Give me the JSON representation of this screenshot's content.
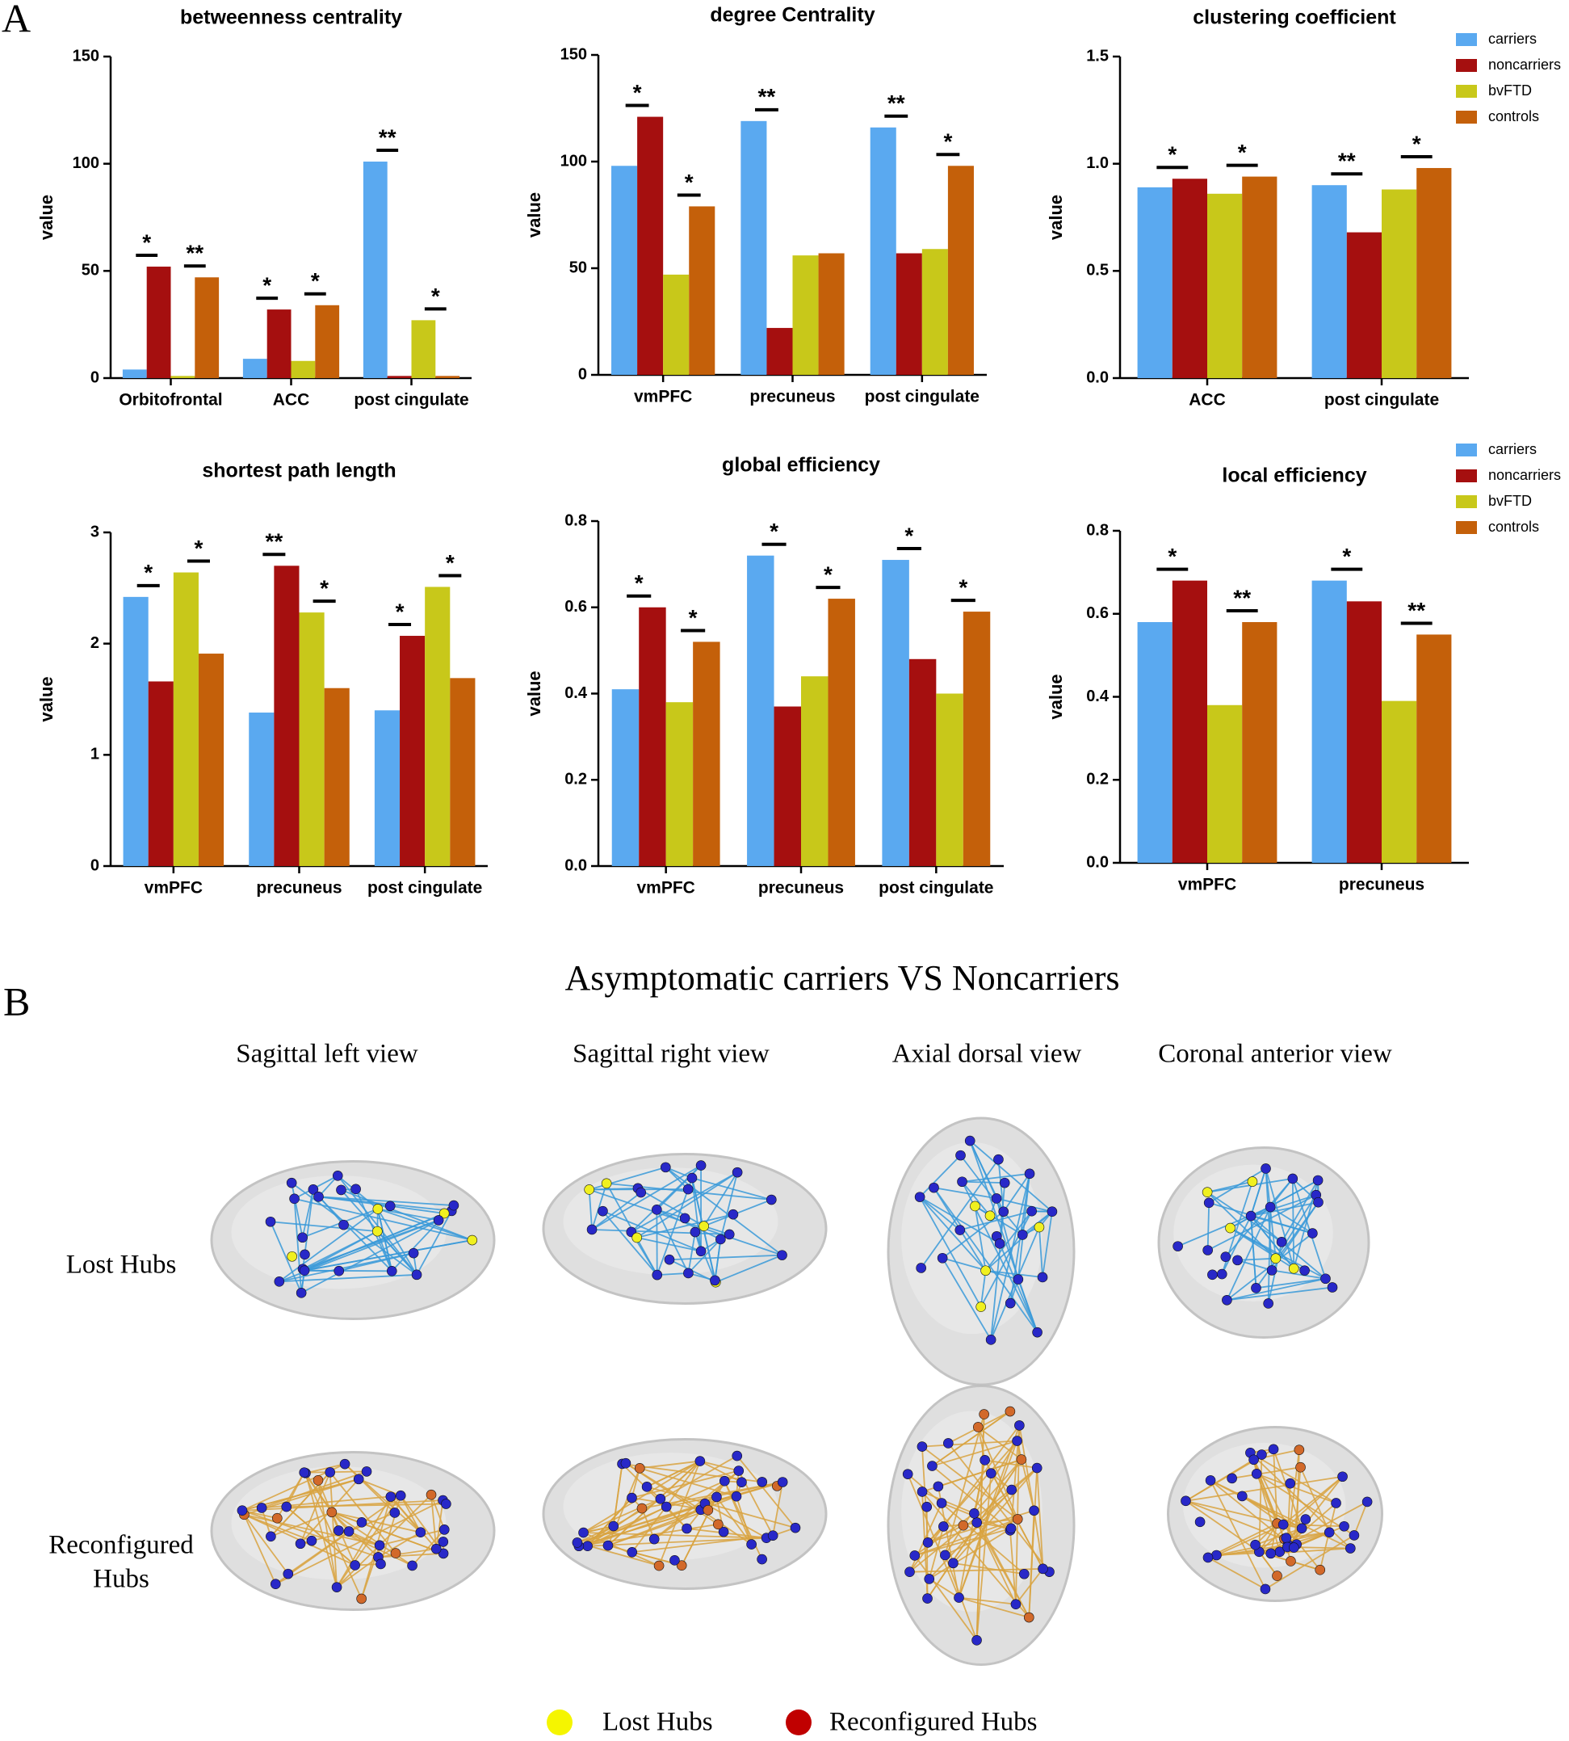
{
  "panel_labels": [
    "A",
    "B"
  ],
  "chart_data": [
    {
      "type": "bar",
      "title": "betweenness centrality",
      "y_label": "value",
      "categories": [
        "Orbitofrontal",
        "ACC",
        "post cingulate"
      ],
      "ylim": [
        0,
        150
      ],
      "yticks": [
        0,
        50,
        100,
        150
      ],
      "legend": false,
      "series": [
        {
          "name": "carriers",
          "color": "#5aa9f0",
          "values": [
            4,
            9,
            101
          ],
          "significance": [
            null,
            null,
            "**"
          ]
        },
        {
          "name": "noncarriers",
          "color": "#a50f0f",
          "values": [
            52,
            32,
            1
          ],
          "significance": [
            "*",
            "*",
            null
          ]
        },
        {
          "name": "bvFTD",
          "color": "#c8c81a",
          "values": [
            1,
            8,
            27
          ],
          "significance": [
            null,
            null,
            "*"
          ]
        },
        {
          "name": "controls",
          "color": "#c4600a",
          "values": [
            47,
            34,
            1
          ],
          "significance": [
            "**",
            "*",
            null
          ]
        }
      ]
    },
    {
      "type": "bar",
      "title": "degree Centrality",
      "y_label": "value",
      "categories": [
        "vmPFC",
        "precuneus",
        "post cingulate"
      ],
      "ylim": [
        0,
        150
      ],
      "yticks": [
        0,
        50,
        100,
        150
      ],
      "legend": false,
      "series": [
        {
          "name": "carriers",
          "color": "#5aa9f0",
          "values": [
            98,
            119,
            116
          ],
          "significance": [
            null,
            "**",
            "**"
          ]
        },
        {
          "name": "noncarriers",
          "color": "#a50f0f",
          "values": [
            121,
            22,
            57
          ],
          "significance": [
            "*",
            null,
            null
          ]
        },
        {
          "name": "bvFTD",
          "color": "#c8c81a",
          "values": [
            47,
            56,
            59
          ],
          "significance": [
            null,
            null,
            null
          ]
        },
        {
          "name": "controls",
          "color": "#c4600a",
          "values": [
            79,
            57,
            98
          ],
          "significance": [
            "*",
            null,
            "*"
          ]
        }
      ]
    },
    {
      "type": "bar",
      "title": "clustering coefficient",
      "y_label": "value",
      "categories": [
        "ACC",
        "post cingulate"
      ],
      "ylim": [
        0,
        1.5
      ],
      "yticks": [
        {
          "value": 0,
          "label": "0.0"
        },
        0.5,
        {
          "value": 1,
          "label": "1.0"
        },
        1.5
      ],
      "legend": true,
      "series": [
        {
          "name": "carriers",
          "color": "#5aa9f0",
          "values": [
            0.89,
            0.9
          ],
          "significance": [
            null,
            "**"
          ]
        },
        {
          "name": "noncarriers",
          "color": "#a50f0f",
          "values": [
            0.93,
            0.68
          ],
          "significance": [
            "*",
            null
          ]
        },
        {
          "name": "bvFTD",
          "color": "#c8c81a",
          "values": [
            0.86,
            0.88
          ],
          "significance": [
            null,
            null
          ]
        },
        {
          "name": "controls",
          "color": "#c4600a",
          "values": [
            0.94,
            0.98
          ],
          "significance": [
            "*",
            "*"
          ]
        }
      ]
    },
    {
      "type": "bar",
      "title": "shortest path length",
      "y_label": "value",
      "categories": [
        "vmPFC",
        "precuneus",
        "post cingulate"
      ],
      "ylim": [
        0,
        3
      ],
      "yticks": [
        0,
        1,
        2,
        3
      ],
      "legend": false,
      "series": [
        {
          "name": "carriers",
          "color": "#5aa9f0",
          "values": [
            2.42,
            1.38,
            1.4
          ],
          "significance": [
            "*",
            null,
            null
          ]
        },
        {
          "name": "noncarriers",
          "color": "#a50f0f",
          "values": [
            1.66,
            2.7,
            2.07
          ],
          "significance": [
            null,
            "**",
            "*"
          ]
        },
        {
          "name": "bvFTD",
          "color": "#c8c81a",
          "values": [
            2.64,
            2.28,
            2.51
          ],
          "significance": [
            "*",
            "*",
            "*"
          ]
        },
        {
          "name": "controls",
          "color": "#c4600a",
          "values": [
            1.91,
            1.6,
            1.69
          ],
          "significance": [
            null,
            null,
            null
          ]
        }
      ]
    },
    {
      "type": "bar",
      "title": "global efficiency",
      "y_label": "value",
      "categories": [
        "vmPFC",
        "precuneus",
        "post cingulate"
      ],
      "ylim": [
        0,
        0.8
      ],
      "yticks": [
        {
          "value": 0,
          "label": "0.0"
        },
        0.2,
        0.4,
        0.6,
        0.8
      ],
      "legend": false,
      "series": [
        {
          "name": "carriers",
          "color": "#5aa9f0",
          "values": [
            0.41,
            0.72,
            0.71
          ],
          "significance": [
            null,
            "*",
            "*"
          ]
        },
        {
          "name": "noncarriers",
          "color": "#a50f0f",
          "values": [
            0.6,
            0.37,
            0.48
          ],
          "significance": [
            "*",
            null,
            null
          ]
        },
        {
          "name": "bvFTD",
          "color": "#c8c81a",
          "values": [
            0.38,
            0.44,
            0.4
          ],
          "significance": [
            null,
            null,
            null
          ]
        },
        {
          "name": "controls",
          "color": "#c4600a",
          "values": [
            0.52,
            0.62,
            0.59
          ],
          "significance": [
            "*",
            "*",
            "*"
          ]
        }
      ]
    },
    {
      "type": "bar",
      "title": "local  efficiency",
      "y_label": "value",
      "categories": [
        "vmPFC",
        "precuneus"
      ],
      "ylim": [
        0,
        0.8
      ],
      "yticks": [
        {
          "value": 0,
          "label": "0.0"
        },
        0.2,
        0.4,
        0.6,
        0.8
      ],
      "legend": true,
      "series": [
        {
          "name": "carriers",
          "color": "#5aa9f0",
          "values": [
            0.58,
            0.68
          ],
          "significance": [
            null,
            "*"
          ]
        },
        {
          "name": "noncarriers",
          "color": "#a50f0f",
          "values": [
            0.68,
            0.63
          ],
          "significance": [
            "*",
            null
          ]
        },
        {
          "name": "bvFTD",
          "color": "#c8c81a",
          "values": [
            0.38,
            0.39
          ],
          "significance": [
            null,
            null
          ]
        },
        {
          "name": "controls",
          "color": "#c4600a",
          "values": [
            0.58,
            0.55
          ],
          "significance": [
            "**",
            "**"
          ]
        }
      ]
    }
  ],
  "section_b": {
    "title": "Asymptomatic carriers VS Noncarriers",
    "views": [
      "Sagittal left view",
      "Sagittal right view",
      "Axial dorsal view",
      "Coronal anterior view"
    ],
    "rows": [
      [
        "Lost Hubs"
      ],
      [
        "Reconfigured",
        "Hubs"
      ]
    ],
    "legend": [
      {
        "name": "Lost Hubs",
        "color": "#f5f500"
      },
      {
        "name": "Reconfigured Hubs",
        "color": "#c00000"
      }
    ]
  }
}
